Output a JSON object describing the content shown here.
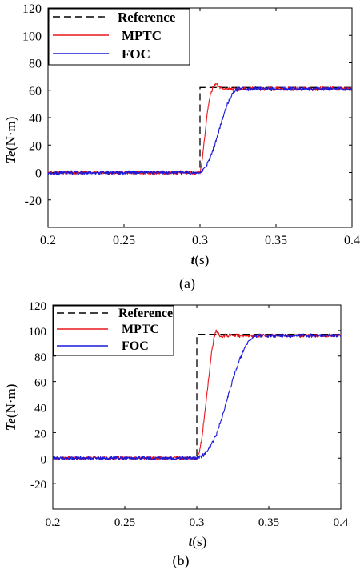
{
  "chart_data": [
    {
      "type": "line",
      "panel_label": "(a)",
      "xlabel_italic": "t",
      "xlabel_unit": "(s)",
      "ylabel_italic": "Te",
      "ylabel_unit": "(N·m)",
      "xlim": [
        0.2,
        0.4
      ],
      "ylim": [
        -40,
        120
      ],
      "xticks": [
        0.2,
        0.25,
        0.3,
        0.35,
        0.4
      ],
      "xtick_labels": [
        "0.2",
        "0.25",
        "0.3",
        "0.35",
        "0.4"
      ],
      "yticks": [
        -20,
        0,
        20,
        40,
        60,
        80,
        100,
        120
      ],
      "ytick_labels": [
        "-20",
        "0",
        "20",
        "40",
        "60",
        "80",
        "100",
        "120"
      ],
      "legend_position": "top-left",
      "series": [
        {
          "name": "Reference",
          "color": "#000000",
          "dash": "dashed",
          "x": [
            0.2,
            0.3,
            0.3,
            0.4
          ],
          "y": [
            0,
            0,
            62,
            62
          ]
        },
        {
          "name": "MPTC",
          "color": "#e8161b",
          "dash": "solid",
          "x": [
            0.2,
            0.3,
            0.301,
            0.303,
            0.305,
            0.307,
            0.309,
            0.311,
            0.313,
            0.316,
            0.32,
            0.4
          ],
          "y": [
            0,
            0,
            5,
            25,
            45,
            58,
            63,
            64,
            62,
            61,
            61,
            61
          ]
        },
        {
          "name": "FOC",
          "color": "#1a1adb",
          "dash": "solid",
          "x": [
            0.2,
            0.3,
            0.302,
            0.305,
            0.308,
            0.311,
            0.314,
            0.317,
            0.32,
            0.323,
            0.326,
            0.4
          ],
          "y": [
            0,
            0,
            2,
            7,
            15,
            25,
            36,
            47,
            55,
            60,
            61,
            61
          ]
        }
      ],
      "noise_amplitude": 1.2
    },
    {
      "type": "line",
      "panel_label": "(b)",
      "xlabel_italic": "t",
      "xlabel_unit": "(s)",
      "ylabel_italic": "Te",
      "ylabel_unit": "(N·m)",
      "xlim": [
        0.2,
        0.4
      ],
      "ylim": [
        -40,
        120
      ],
      "xticks": [
        0.2,
        0.25,
        0.3,
        0.35,
        0.4
      ],
      "xtick_labels": [
        "0.2",
        "0.25",
        "0.3",
        "0.35",
        "0.4"
      ],
      "yticks": [
        -20,
        0,
        20,
        40,
        60,
        80,
        100,
        120
      ],
      "ytick_labels": [
        "-20",
        "0",
        "20",
        "40",
        "60",
        "80",
        "100",
        "120"
      ],
      "legend_position": "top-left",
      "series": [
        {
          "name": "Reference",
          "color": "#000000",
          "dash": "dashed",
          "x": [
            0.2,
            0.3,
            0.3,
            0.4
          ],
          "y": [
            0,
            0,
            97,
            97
          ]
        },
        {
          "name": "MPTC",
          "color": "#e8161b",
          "dash": "solid",
          "x": [
            0.2,
            0.3,
            0.302,
            0.304,
            0.306,
            0.308,
            0.31,
            0.312,
            0.3135,
            0.315,
            0.317,
            0.32,
            0.4
          ],
          "y": [
            0,
            0,
            5,
            20,
            40,
            60,
            80,
            95,
            101,
            97,
            95,
            96,
            96
          ]
        },
        {
          "name": "FOC",
          "color": "#1a1adb",
          "dash": "solid",
          "x": [
            0.2,
            0.3,
            0.303,
            0.306,
            0.31,
            0.314,
            0.318,
            0.322,
            0.326,
            0.33,
            0.334,
            0.338,
            0.342,
            0.4
          ],
          "y": [
            0,
            0,
            1,
            4,
            10,
            20,
            34,
            50,
            65,
            78,
            88,
            94,
            96,
            96
          ]
        }
      ],
      "noise_amplitude": 1.2
    }
  ]
}
